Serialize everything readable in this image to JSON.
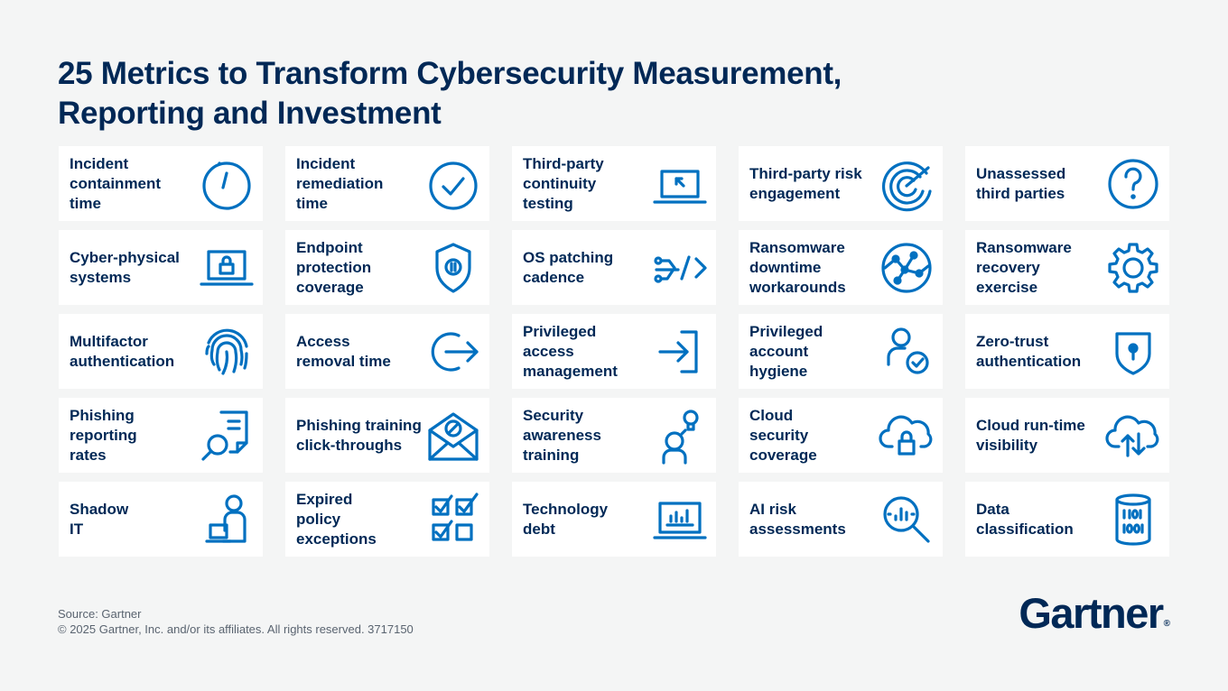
{
  "title": {
    "line1": "25 Metrics to Transform Cybersecurity Measurement,",
    "line2": "Reporting and Investment"
  },
  "colors": {
    "title": "#002856",
    "icon": "#0070c0",
    "card": "#ffffff",
    "background": "#f4f5f5"
  },
  "metrics": [
    {
      "label": "Incident\ncontainment\ntime",
      "icon": "stopwatch-icon"
    },
    {
      "label": "Incident\nremediation\ntime",
      "icon": "check-circle-icon"
    },
    {
      "label": "Third-party\ncontinuity\ntesting",
      "icon": "laptop-cursor-icon"
    },
    {
      "label": "Third-party risk\nengagement",
      "icon": "radar-icon"
    },
    {
      "label": "Unassessed\nthird parties",
      "icon": "question-circle-icon"
    },
    {
      "label": "Cyber-physical\nsystems",
      "icon": "laptop-lock-icon"
    },
    {
      "label": "Endpoint\nprotection\ncoverage",
      "icon": "shield-icon"
    },
    {
      "label": "OS patching\ncadence",
      "icon": "code-flow-icon"
    },
    {
      "label": "Ransomware\ndowntime\nworkarounds",
      "icon": "network-globe-icon"
    },
    {
      "label": "Ransomware\nrecovery\nexercise",
      "icon": "gear-icon"
    },
    {
      "label": "Multifactor\nauthentication",
      "icon": "fingerprint-icon"
    },
    {
      "label": "Access\nremoval time",
      "icon": "logout-icon"
    },
    {
      "label": "Privileged\naccess\nmanagement",
      "icon": "login-icon"
    },
    {
      "label": "Privileged\naccount\nhygiene",
      "icon": "user-check-icon"
    },
    {
      "label": "Zero-trust\nauthentication",
      "icon": "shield-lock-icon"
    },
    {
      "label": "Phishing\nreporting\nrates",
      "icon": "document-search-icon"
    },
    {
      "label": "Phishing training\nclick-throughs",
      "icon": "envelope-blocked-icon"
    },
    {
      "label": "Security\nawareness\ntraining",
      "icon": "person-idea-icon"
    },
    {
      "label": "Cloud\nsecurity\ncoverage",
      "icon": "cloud-lock-icon"
    },
    {
      "label": "Cloud run-time\nvisibility",
      "icon": "cloud-transfer-icon"
    },
    {
      "label": "Shadow\nIT",
      "icon": "person-desk-icon"
    },
    {
      "label": "Expired\npolicy\nexceptions",
      "icon": "checkboxes-icon"
    },
    {
      "label": "Technology\ndebt",
      "icon": "laptop-chart-icon"
    },
    {
      "label": "AI risk\nassessments",
      "icon": "magnifier-chart-icon"
    },
    {
      "label": "Data\nclassification",
      "icon": "database-binary-icon"
    }
  ],
  "footer": {
    "source": "Source: Gartner",
    "copyright": "© 2025 Gartner, Inc. and/or its affiliates. All rights reserved. 3717150"
  },
  "brand": {
    "name": "Gartner",
    "mark": "®"
  }
}
